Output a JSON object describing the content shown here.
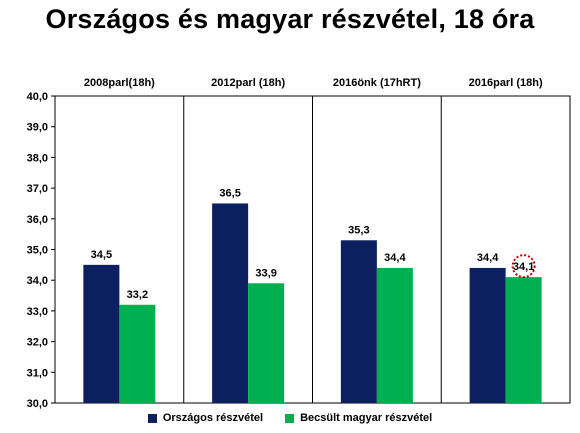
{
  "title": "Országos és magyar részvétel, 18 óra",
  "colors": {
    "orszagos": "#0c1f5e",
    "magyar": "#00b050",
    "highlight": "#c00000"
  },
  "chart_data": {
    "type": "bar",
    "title": "Országos és magyar részvétel, 18 óra",
    "categories": [
      "2008parl(18h)",
      "2012parl  (18h)",
      "2016önk  (17hRT)",
      "2016parl  (18h)"
    ],
    "series": [
      {
        "name": "Országos  részvétel",
        "values": [
          34.5,
          36.5,
          35.3,
          34.4
        ],
        "labels": [
          "34,5",
          "36,5",
          "35,3",
          "34,4"
        ]
      },
      {
        "name": "Becsült  magyar  részvétel",
        "values": [
          33.2,
          33.9,
          34.4,
          34.1
        ],
        "labels": [
          "33,2",
          "33,9",
          "34,4",
          "34,1"
        ]
      }
    ],
    "ylim": [
      30,
      40
    ],
    "yticks": [
      "30,0",
      "31,0",
      "32,0",
      "33,0",
      "34,0",
      "35,0",
      "36,0",
      "37,0",
      "38,0",
      "39,0",
      "40,0"
    ],
    "grid": false,
    "legend_position": "bottom",
    "highlighted": {
      "series": 1,
      "category": 3
    }
  }
}
